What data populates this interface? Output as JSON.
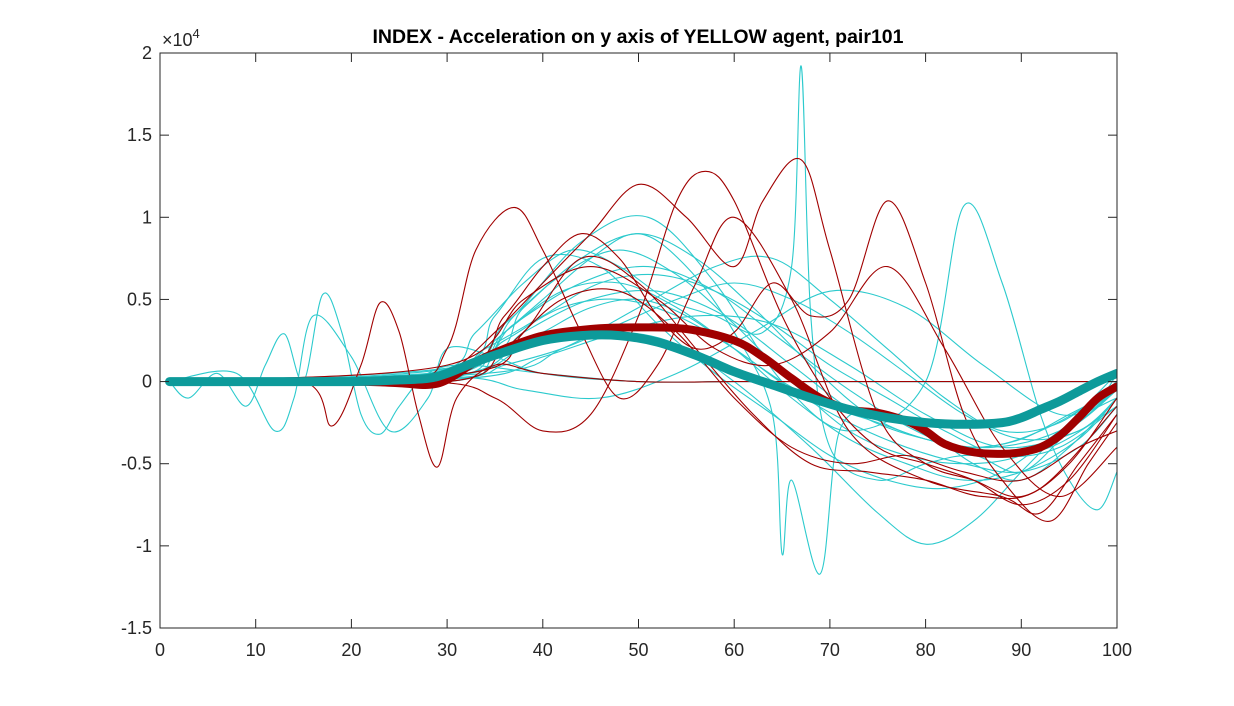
{
  "chart_data": {
    "type": "line",
    "title": "INDEX - Acceleration on y axis of YELLOW agent, pair101",
    "xlabel": "",
    "ylabel": "",
    "xlim": [
      0,
      100
    ],
    "ylim": [
      -1.5,
      2
    ],
    "y_exponent_label": "×10",
    "y_exponent_power": "4",
    "x_ticks": [
      0,
      10,
      20,
      30,
      40,
      50,
      60,
      70,
      80,
      90,
      100
    ],
    "x_tick_labels": [
      "0",
      "10",
      "20",
      "30",
      "40",
      "50",
      "60",
      "70",
      "80",
      "90",
      "100"
    ],
    "y_ticks": [
      -1.5,
      -1,
      -0.5,
      0,
      0.5,
      1,
      1.5,
      2
    ],
    "y_tick_labels": [
      "-1.5",
      "-1",
      "-0.5",
      "0",
      "0.5",
      "1",
      "1.5",
      "2"
    ],
    "grid": false,
    "colors": {
      "red_trials": "#a00000",
      "cyan_trials": "#2ccacd",
      "red_mean": "#a00000",
      "cyan_mean": "#0d9a9a",
      "axes": "#262626"
    },
    "series": [
      {
        "group": "mean-red",
        "x": [
          1,
          10,
          20,
          25,
          28,
          30,
          33,
          36,
          40,
          45,
          50,
          55,
          60,
          63,
          66,
          69,
          72,
          75,
          78,
          80,
          82,
          85,
          88,
          90,
          92,
          94,
          96,
          98,
          100
        ],
        "values": [
          0,
          0,
          0,
          -0.01,
          -0.02,
          0.01,
          0.12,
          0.2,
          0.28,
          0.32,
          0.33,
          0.32,
          0.25,
          0.15,
          0.02,
          -0.1,
          -0.17,
          -0.19,
          -0.24,
          -0.3,
          -0.38,
          -0.43,
          -0.44,
          -0.43,
          -0.4,
          -0.33,
          -0.22,
          -0.1,
          -0.03
        ]
      },
      {
        "group": "mean-cyan",
        "x": [
          1,
          10,
          20,
          25,
          28,
          30,
          33,
          36,
          40,
          44,
          48,
          52,
          56,
          60,
          64,
          68,
          72,
          76,
          80,
          84,
          88,
          90,
          92,
          94,
          96,
          98,
          100
        ],
        "values": [
          0,
          0,
          0,
          0.01,
          0.02,
          0.05,
          0.12,
          0.18,
          0.25,
          0.28,
          0.28,
          0.24,
          0.16,
          0.06,
          -0.02,
          -0.1,
          -0.17,
          -0.22,
          -0.25,
          -0.26,
          -0.25,
          -0.22,
          -0.17,
          -0.12,
          -0.06,
          0,
          0.05
        ]
      },
      {
        "group": "trial-red",
        "x": [
          1,
          15,
          18,
          21,
          23,
          25,
          27,
          29,
          31,
          35,
          40,
          50,
          60,
          70,
          80,
          90,
          100
        ],
        "values": [
          0,
          0,
          -0.27,
          0.1,
          0.48,
          0.3,
          -0.2,
          -0.52,
          -0.1,
          0.1,
          0.05,
          0,
          0,
          0,
          0,
          0,
          0
        ]
      },
      {
        "group": "trial-red",
        "x": [
          1,
          25,
          30,
          33,
          37,
          40,
          44,
          48,
          52,
          56,
          60,
          66,
          72,
          80,
          88,
          92,
          96,
          100
        ],
        "values": [
          0,
          0,
          0.2,
          0.8,
          1.06,
          0.8,
          0.3,
          -0.1,
          0.1,
          0.6,
          1.0,
          0.5,
          -0.3,
          -0.6,
          -0.7,
          -0.8,
          -0.5,
          -0.2
        ]
      },
      {
        "group": "trial-red",
        "x": [
          1,
          25,
          30,
          35,
          40,
          45,
          50,
          55,
          60,
          63,
          67,
          70,
          75,
          80,
          85,
          90,
          95,
          100
        ],
        "values": [
          0,
          0,
          0.05,
          0.3,
          0.6,
          0.9,
          1.2,
          1.0,
          0.7,
          1.1,
          1.35,
          0.8,
          -0.2,
          -0.5,
          -0.6,
          -0.7,
          -0.5,
          -0.1
        ]
      },
      {
        "group": "trial-red",
        "x": [
          1,
          28,
          35,
          40,
          45,
          50,
          54,
          57,
          60,
          65,
          70,
          75,
          80,
          85,
          90,
          95,
          100
        ],
        "values": [
          0,
          0,
          -0.1,
          -0.3,
          -0.2,
          0.4,
          1.1,
          1.28,
          1.1,
          0.4,
          -0.1,
          -0.4,
          -0.5,
          -0.6,
          -0.75,
          -0.6,
          -0.2
        ]
      },
      {
        "group": "trial-red",
        "x": [
          1,
          30,
          36,
          40,
          44,
          48,
          52,
          56,
          60,
          64,
          68,
          72,
          76,
          80,
          84,
          88,
          93,
          97,
          100
        ],
        "values": [
          0,
          0.05,
          0.4,
          0.7,
          0.9,
          0.75,
          0.4,
          0.2,
          0.3,
          0.6,
          0.4,
          0.5,
          1.1,
          0.6,
          -0.2,
          -0.6,
          -0.85,
          -0.5,
          -0.25
        ]
      },
      {
        "group": "trial-red",
        "x": [
          1,
          30,
          38,
          45,
          52,
          58,
          64,
          70,
          76,
          82,
          88,
          94,
          100
        ],
        "values": [
          0,
          0.1,
          0.5,
          0.7,
          0.5,
          0.2,
          0.1,
          0.3,
          0.7,
          0.2,
          -0.4,
          -0.7,
          -0.4
        ]
      },
      {
        "group": "trial-red",
        "x": [
          1,
          30,
          36,
          42,
          48,
          54,
          60,
          66,
          72,
          78,
          84,
          90,
          96,
          100
        ],
        "values": [
          0,
          0,
          0.2,
          0.5,
          0.55,
          0.3,
          -0.1,
          -0.4,
          -0.5,
          -0.45,
          -0.55,
          -0.6,
          -0.4,
          -0.3
        ]
      },
      {
        "group": "trial-red",
        "x": [
          1,
          32,
          38,
          44,
          50,
          56,
          62,
          68,
          74,
          80,
          86,
          92,
          100
        ],
        "values": [
          0,
          0.05,
          0.3,
          0.75,
          0.6,
          0.2,
          -0.2,
          -0.5,
          -0.55,
          -0.6,
          -0.7,
          -0.65,
          -0.15
        ]
      },
      {
        "group": "trial-cyan",
        "x": [
          1,
          3,
          6,
          9,
          11,
          13,
          15,
          17,
          19,
          21,
          23,
          25,
          28,
          32,
          40,
          50,
          60,
          70,
          80,
          90,
          100
        ],
        "values": [
          0,
          -0.1,
          0.05,
          -0.15,
          0.1,
          0.29,
          0.0,
          0.53,
          0.3,
          -0.2,
          -0.32,
          -0.15,
          0.05,
          0.1,
          0.05,
          0,
          0,
          0,
          0,
          0,
          0
        ]
      },
      {
        "group": "trial-cyan",
        "x": [
          1,
          8,
          12,
          14,
          16,
          20,
          24,
          28,
          30,
          35,
          40,
          50,
          60,
          70,
          80,
          90,
          100
        ],
        "values": [
          0,
          0.05,
          -0.3,
          -0.1,
          0.4,
          0.15,
          -0.3,
          -0.1,
          0.2,
          0.15,
          0.05,
          0,
          0,
          0,
          0,
          0,
          0
        ]
      },
      {
        "group": "trial-cyan",
        "x": [
          1,
          28,
          33,
          38,
          43,
          48,
          53,
          58,
          63,
          66,
          67,
          68,
          70,
          75,
          80,
          85,
          90,
          95,
          100
        ],
        "values": [
          0,
          0.05,
          0.3,
          0.6,
          0.8,
          0.7,
          0.5,
          0.4,
          0.3,
          0.7,
          1.92,
          0.4,
          -0.4,
          -0.6,
          -0.5,
          -0.45,
          -0.55,
          -0.3,
          -0.05
        ]
      },
      {
        "group": "trial-cyan",
        "x": [
          1,
          30,
          35,
          40,
          45,
          50,
          55,
          60,
          64,
          65,
          66,
          69,
          71,
          75,
          80,
          85,
          90,
          95,
          100
        ],
        "values": [
          0,
          0.02,
          0.25,
          0.5,
          0.75,
          0.9,
          0.7,
          0.3,
          -0.2,
          -1.05,
          -0.6,
          -1.17,
          -0.3,
          -0.2,
          -0.3,
          -0.5,
          -0.6,
          -0.4,
          -0.1
        ]
      },
      {
        "group": "trial-cyan",
        "x": [
          1,
          30,
          37,
          44,
          51,
          58,
          65,
          72,
          80,
          84,
          88,
          92,
          95,
          98,
          100
        ],
        "values": [
          0,
          0.03,
          0.4,
          0.85,
          1.0,
          0.6,
          0.0,
          -0.3,
          0.0,
          1.07,
          0.6,
          -0.2,
          -0.6,
          -0.78,
          -0.55
        ]
      },
      {
        "group": "trial-cyan",
        "x": [
          1,
          30,
          38,
          45,
          53,
          60,
          68,
          75,
          80,
          85,
          90,
          95,
          100
        ],
        "values": [
          0,
          0.03,
          0.2,
          0.3,
          0.25,
          0.0,
          -0.4,
          -0.8,
          -0.99,
          -0.85,
          -0.55,
          -0.25,
          0.05
        ]
      },
      {
        "group": "trial-cyan",
        "x": [
          1,
          30,
          36,
          42,
          48,
          54,
          60,
          66,
          72,
          78,
          84,
          90,
          96,
          100
        ],
        "values": [
          0,
          0.05,
          0.35,
          0.65,
          0.8,
          0.65,
          0.35,
          0.0,
          -0.3,
          -0.45,
          -0.5,
          -0.45,
          -0.25,
          -0.05
        ]
      },
      {
        "group": "trial-cyan",
        "x": [
          1,
          32,
          38,
          44,
          50,
          56,
          62,
          68,
          74,
          80,
          86,
          92,
          98,
          100
        ],
        "values": [
          0,
          0.1,
          0.45,
          0.75,
          0.9,
          0.75,
          0.45,
          0.1,
          -0.2,
          -0.35,
          -0.4,
          -0.3,
          -0.1,
          0.05
        ]
      },
      {
        "group": "trial-cyan",
        "x": [
          1,
          30,
          35,
          40,
          45,
          50,
          55,
          60,
          65,
          70,
          75,
          80,
          85,
          90,
          95,
          100
        ],
        "values": [
          0,
          0.0,
          0.15,
          0.3,
          0.45,
          0.5,
          0.4,
          0.2,
          0.0,
          -0.15,
          -0.25,
          -0.35,
          -0.4,
          -0.35,
          -0.2,
          -0.05
        ]
      },
      {
        "group": "trial-cyan",
        "x": [
          1,
          28,
          34,
          40,
          46,
          52,
          58,
          64,
          70,
          76,
          82,
          88,
          94,
          100
        ],
        "values": [
          0,
          0.03,
          0.2,
          0.4,
          0.6,
          0.65,
          0.55,
          0.35,
          0.1,
          -0.1,
          -0.3,
          -0.45,
          -0.4,
          -0.15
        ]
      },
      {
        "group": "trial-cyan",
        "x": [
          1,
          30,
          36,
          42,
          48,
          54,
          60,
          66,
          72,
          78,
          84,
          90,
          96,
          100
        ],
        "values": [
          0,
          0.02,
          0.1,
          0.2,
          0.35,
          0.5,
          0.6,
          0.5,
          0.3,
          0.05,
          -0.2,
          -0.35,
          -0.3,
          -0.1
        ]
      },
      {
        "group": "trial-cyan",
        "x": [
          1,
          30,
          36,
          42,
          48,
          54,
          60,
          66,
          72,
          78,
          84,
          90,
          96,
          100
        ],
        "values": [
          0,
          0.04,
          0.3,
          0.55,
          0.6,
          0.45,
          0.2,
          -0.1,
          -0.35,
          -0.5,
          -0.6,
          -0.55,
          -0.35,
          -0.1
        ]
      },
      {
        "group": "trial-cyan",
        "x": [
          1,
          30,
          37,
          44,
          51,
          58,
          65,
          72,
          79,
          86,
          93,
          100
        ],
        "values": [
          0,
          0.05,
          0.35,
          0.6,
          0.7,
          0.55,
          0.25,
          -0.05,
          -0.3,
          -0.45,
          -0.4,
          -0.15
        ]
      },
      {
        "group": "trial-cyan",
        "x": [
          1,
          32,
          40,
          48,
          56,
          64,
          72,
          80,
          88,
          96,
          100
        ],
        "values": [
          0,
          0.02,
          0.15,
          0.3,
          0.4,
          0.35,
          0.1,
          -0.2,
          -0.4,
          -0.3,
          -0.1
        ]
      },
      {
        "group": "trial-cyan",
        "x": [
          1,
          30,
          35,
          40,
          46,
          52,
          58,
          64,
          70,
          76,
          82,
          88,
          94,
          100
        ],
        "values": [
          0,
          0.08,
          0.4,
          0.75,
          0.7,
          0.35,
          0.05,
          -0.2,
          -0.45,
          -0.6,
          -0.65,
          -0.55,
          -0.3,
          -0.05
        ]
      },
      {
        "group": "trial-cyan",
        "x": [
          1,
          34,
          42,
          50,
          58,
          64,
          70,
          76,
          82,
          88,
          94,
          100
        ],
        "values": [
          0,
          0.05,
          0.2,
          0.45,
          0.7,
          0.75,
          0.5,
          0.2,
          -0.1,
          -0.3,
          -0.25,
          0.0
        ]
      },
      {
        "group": "trial-cyan",
        "x": [
          1,
          30,
          38,
          46,
          54,
          62,
          70,
          78,
          86,
          94,
          100
        ],
        "values": [
          0,
          0.03,
          -0.05,
          -0.1,
          0.05,
          0.3,
          0.55,
          0.45,
          0.1,
          -0.2,
          -0.1
        ]
      },
      {
        "group": "trial-cyan",
        "x": [
          1,
          30,
          36,
          42,
          48,
          54,
          60,
          66,
          72,
          78,
          84,
          90,
          96,
          100
        ],
        "values": [
          0,
          0.06,
          0.25,
          0.45,
          0.5,
          0.4,
          0.2,
          -0.05,
          -0.25,
          -0.4,
          -0.5,
          -0.55,
          -0.4,
          -0.15
        ]
      },
      {
        "group": "trial-cyan",
        "x": [
          1,
          31,
          38,
          45,
          52,
          59,
          66,
          73,
          80,
          87,
          94,
          100
        ],
        "values": [
          0,
          0.04,
          0.3,
          0.5,
          0.55,
          0.4,
          0.1,
          -0.2,
          -0.35,
          -0.4,
          -0.3,
          -0.05
        ]
      }
    ]
  }
}
